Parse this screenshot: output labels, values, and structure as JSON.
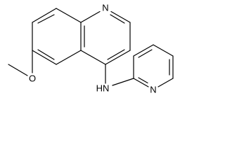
{
  "atoms": [
    {
      "label": "N"
    },
    {
      "label": "O"
    },
    {
      "label": "HN"
    },
    {
      "label": "N"
    }
  ]
}
